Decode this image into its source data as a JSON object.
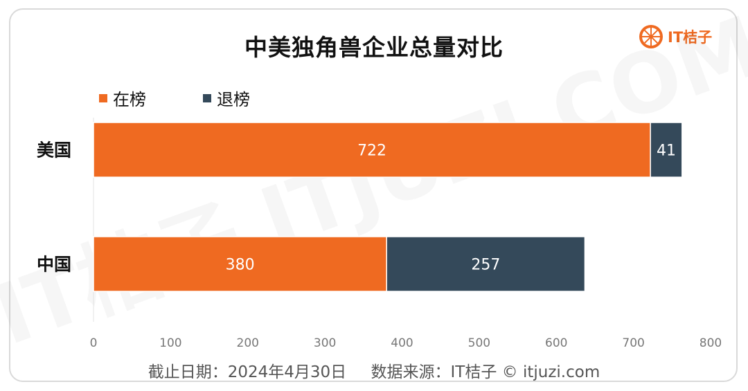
{
  "title": "中美独角兽企业总量对比",
  "logo": {
    "text": "IT桔子",
    "icon": "orange-slice-icon"
  },
  "footer": {
    "date": "截止日期：2024年4月30日",
    "source": "数据来源：IT桔子 © itjuzi.com"
  },
  "colors": {
    "on_list": "#ef6a21",
    "off_list": "#34495a"
  },
  "chart_data": {
    "type": "bar",
    "orientation": "horizontal",
    "stacked": true,
    "title": "中美独角兽企业总量对比",
    "categories": [
      "美国",
      "中国"
    ],
    "series": [
      {
        "name": "在榜",
        "color": "#ef6a21",
        "values": [
          722,
          380
        ]
      },
      {
        "name": "退榜",
        "color": "#34495a",
        "values": [
          41,
          257
        ]
      }
    ],
    "xlim": [
      0,
      800
    ],
    "xticks": [
      0,
      100,
      200,
      300,
      400,
      500,
      600,
      700,
      800
    ],
    "legend": "top-left",
    "grid": false,
    "watermark": "IT桔子 ITJUZI.COM"
  }
}
